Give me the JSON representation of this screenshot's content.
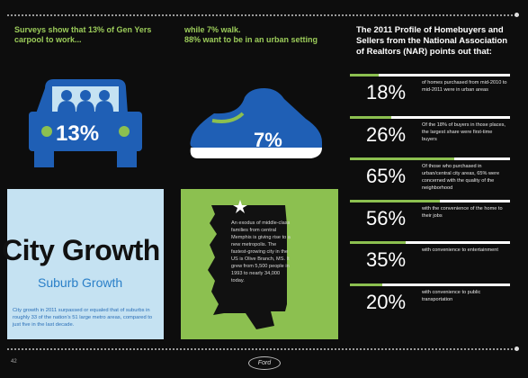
{
  "col1_header": "Surveys show that 13% of Gen Yers carpool to work...",
  "col2_header": "while 7% walk.\n88% want to be in an urban setting",
  "col3_header": "The 2011 Profile of Homebuyers and Sellers from the National Association of Realtors (NAR) points out that:",
  "car_percent": "13%",
  "shoe_percent": "7%",
  "city_growth": "City Growth",
  "suburb_growth": "Suburb Growth",
  "city_growth_text": "City growth in 2011 surpassed or equaled that of suburbs in roughly 33 of the nation's 51 large metro areas, compared to just five in the last decade.",
  "map_text": "An exodus of middle-class families from central Memphis is giving rise to a new metropolis. The fastest-growing city in the US is Olive Branch, MS. It grew from 5,500 people in 1993 to nearly 34,000 today.",
  "stats": [
    {
      "value": "18%",
      "fill": 0.18,
      "text": "of homes purchased from mid-2010 to mid-2011 were in urban areas"
    },
    {
      "value": "26%",
      "fill": 0.26,
      "text": "Of the 18% of buyers in those places, the largest share were first-time buyers"
    },
    {
      "value": "65%",
      "fill": 0.65,
      "text": "Of those who purchased in urban/central city areas, 65% were concerned with the quality of the neighborhood"
    },
    {
      "value": "56%",
      "fill": 0.56,
      "text": "with the convenience of the home to their jobs"
    },
    {
      "value": "35%",
      "fill": 0.35,
      "text": "with convenience to entertainment"
    },
    {
      "value": "20%",
      "fill": 0.2,
      "text": "with convenience to public transportation"
    }
  ],
  "page_number": "42",
  "logo_text": "Ford",
  "colors": {
    "accent_green": "#8cc050",
    "blue": "#1f5fb5",
    "light_blue": "#c5e2f2"
  }
}
